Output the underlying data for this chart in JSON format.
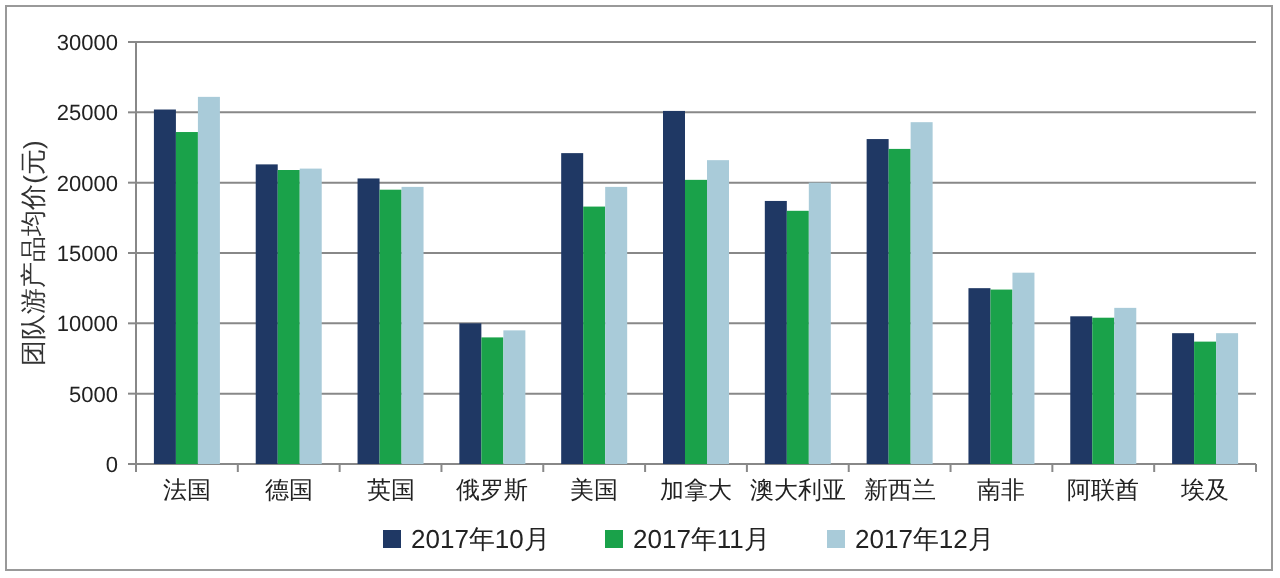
{
  "chart_data": {
    "type": "bar",
    "ylabel": "团队游产品均价(元)",
    "categories": [
      "法国",
      "德国",
      "英国",
      "俄罗斯",
      "美国",
      "加拿大",
      "澳大利亚",
      "新西兰",
      "南非",
      "阿联酋",
      "埃及"
    ],
    "series": [
      {
        "name": "2017年10月",
        "color": "#1f3864",
        "values": [
          25200,
          21300,
          20300,
          10000,
          22100,
          25100,
          18700,
          23100,
          12500,
          10500,
          9300
        ]
      },
      {
        "name": "2017年11月",
        "color": "#1aa24a",
        "values": [
          23600,
          20900,
          19500,
          9000,
          18300,
          20200,
          18000,
          22400,
          12400,
          10400,
          8700
        ]
      },
      {
        "name": "2017年12月",
        "color": "#a9cbd9",
        "values": [
          26100,
          21000,
          19700,
          9500,
          19700,
          21600,
          20000,
          24300,
          13600,
          11100,
          9300
        ]
      }
    ],
    "ylim": [
      0,
      30000
    ],
    "yticks": [
      0,
      5000,
      10000,
      15000,
      20000,
      25000,
      30000
    ],
    "grid": "y",
    "legend": "bottom"
  }
}
